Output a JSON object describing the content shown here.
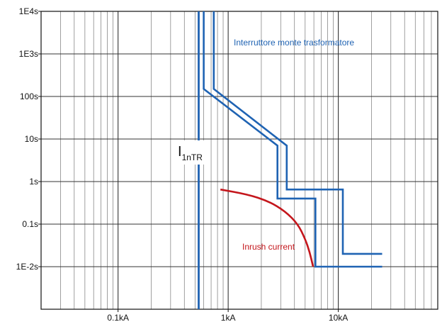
{
  "chart_data": {
    "type": "line",
    "title": "",
    "xlabel": "",
    "ylabel": "",
    "x_scale": "log",
    "y_scale": "log",
    "xlim": [
      0.02,
      80
    ],
    "ylim": [
      0.001,
      10000
    ],
    "x_ticks": [
      {
        "value": 0.1,
        "label": "0.1kA"
      },
      {
        "value": 1,
        "label": "1kA"
      },
      {
        "value": 10,
        "label": "10kA"
      }
    ],
    "y_ticks": [
      {
        "value": 10000,
        "label": "1E4s"
      },
      {
        "value": 1000,
        "label": "1E3s"
      },
      {
        "value": 100,
        "label": "100s"
      },
      {
        "value": 10,
        "label": "10s"
      },
      {
        "value": 1,
        "label": "1s"
      },
      {
        "value": 0.1,
        "label": "0.1s"
      },
      {
        "value": 0.01,
        "label": "1E-2s"
      }
    ],
    "grid": true,
    "series": [
      {
        "id": "I1nTR",
        "color": "#1f63b3",
        "points": [
          [
            0.54,
            0.001
          ],
          [
            0.54,
            10000
          ]
        ]
      },
      {
        "id": "breaker-band-1",
        "color": "#1f63b3",
        "points": [
          [
            0.6,
            10000
          ],
          [
            0.6,
            150
          ],
          [
            2.8,
            7
          ],
          [
            2.8,
            0.4
          ],
          [
            6.2,
            0.4
          ],
          [
            6.2,
            0.01
          ],
          [
            25,
            0.01
          ]
        ]
      },
      {
        "id": "breaker-band-2",
        "color": "#1f63b3",
        "points": [
          [
            0.74,
            10000
          ],
          [
            0.74,
            150
          ],
          [
            3.4,
            7
          ],
          [
            3.4,
            0.65
          ],
          [
            11,
            0.65
          ],
          [
            11,
            0.02
          ],
          [
            25,
            0.02
          ]
        ]
      },
      {
        "id": "inrush",
        "color": "#c4161c",
        "points": [
          [
            0.85,
            0.65
          ],
          [
            1.5,
            0.5
          ],
          [
            2.3,
            0.35
          ],
          [
            3.3,
            0.2
          ],
          [
            4.3,
            0.1
          ],
          [
            5.0,
            0.045
          ],
          [
            5.5,
            0.022
          ],
          [
            5.9,
            0.01
          ]
        ]
      }
    ],
    "annotations": {
      "breaker": "Interruttore monte trasformatore",
      "inrush": "Inrush current",
      "current_main": "I",
      "current_sub": "1nTR"
    }
  }
}
